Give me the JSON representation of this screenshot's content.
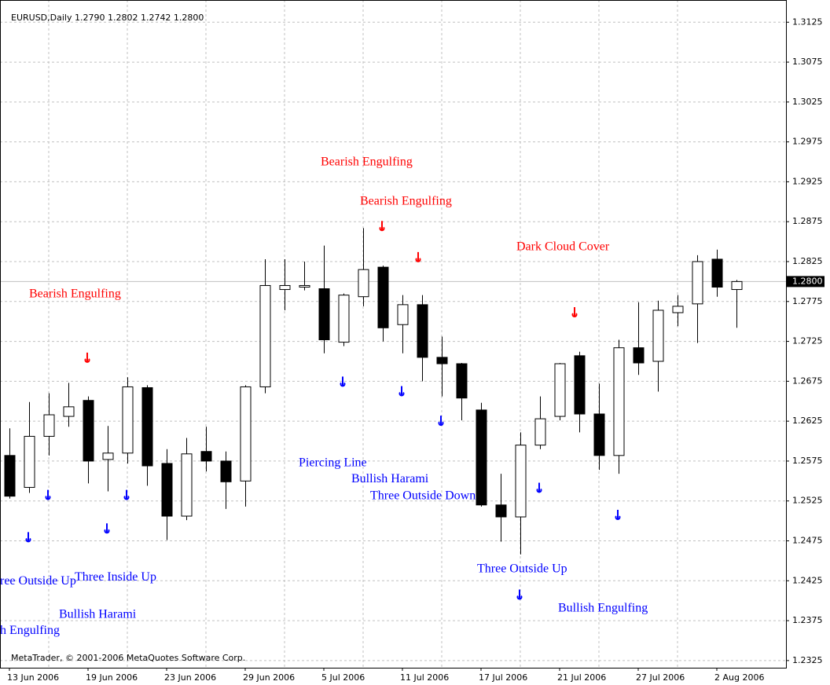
{
  "chart_data": {
    "type": "candlestick",
    "title": "EURUSD,Daily  1.2790 1.2802 1.2742 1.2800",
    "footer": "MetaTrader, © 2001-2006 MetaQuotes Software Corp.",
    "categories": [
      "13 Jun 2006",
      null,
      null,
      null,
      "19 Jun 2006",
      null,
      null,
      null,
      "23 Jun 2006",
      null,
      null,
      null,
      "29 Jun 2006",
      null,
      null,
      null,
      "5 Jul 2006",
      null,
      null,
      null,
      "11 Jul 2006",
      null,
      null,
      null,
      "17 Jul 2006",
      null,
      null,
      null,
      "21 Jul 2006",
      null,
      null,
      null,
      "27 Jul 2006",
      null,
      null,
      null,
      "2 Aug 2006",
      null
    ],
    "series": [
      {
        "name": "EURUSD",
        "open": [
          1.2582,
          1.2542,
          1.2606,
          1.2631,
          1.2651,
          1.2577,
          1.2585,
          1.2667,
          1.2572,
          1.2506,
          1.2587,
          1.2575,
          1.255,
          1.2668,
          1.279,
          1.2793,
          1.2791,
          1.2724,
          1.2781,
          1.2818,
          1.2746,
          1.2771,
          1.2705,
          1.2697,
          1.2639,
          1.252,
          1.2505,
          1.2595,
          1.2631,
          1.2707,
          1.2634,
          1.2582,
          1.2717,
          1.27,
          1.2761,
          1.2772,
          1.2828,
          1.279
        ],
        "high": [
          1.2616,
          1.2649,
          1.266,
          1.2673,
          1.2656,
          1.2619,
          1.268,
          1.267,
          1.259,
          1.2604,
          1.2618,
          1.2587,
          1.267,
          1.2828,
          1.2828,
          1.2825,
          1.2845,
          1.2785,
          1.2867,
          1.282,
          1.2783,
          1.2783,
          1.2731,
          1.2698,
          1.2648,
          1.2559,
          1.2611,
          1.2656,
          1.2698,
          1.2712,
          1.2672,
          1.2727,
          1.2774,
          1.2776,
          1.2783,
          1.2833,
          1.284,
          1.2802
        ],
        "low": [
          1.2528,
          1.2535,
          1.2582,
          1.2618,
          1.2547,
          1.2537,
          1.2572,
          1.2544,
          1.2476,
          1.2501,
          1.2562,
          1.2515,
          1.2518,
          1.266,
          1.2764,
          1.2789,
          1.271,
          1.2719,
          1.2769,
          1.2725,
          1.271,
          1.2675,
          1.2656,
          1.2626,
          1.2518,
          1.2474,
          1.2458,
          1.259,
          1.2626,
          1.2611,
          1.2564,
          1.2559,
          1.2683,
          1.2662,
          1.2744,
          1.2723,
          1.2781,
          1.2742
        ],
        "close": [
          1.2531,
          1.2606,
          1.2633,
          1.2643,
          1.2575,
          1.2585,
          1.2668,
          1.2569,
          1.2506,
          1.2584,
          1.2575,
          1.2549,
          1.2668,
          1.2795,
          1.2795,
          1.2795,
          1.2727,
          1.2783,
          1.2815,
          1.2742,
          1.2771,
          1.2705,
          1.2697,
          1.2654,
          1.252,
          1.2505,
          1.2595,
          1.2628,
          1.2697,
          1.2634,
          1.2582,
          1.2717,
          1.2698,
          1.2764,
          1.2769,
          1.2825,
          1.2793,
          1.28
        ]
      }
    ],
    "ylim": [
      1.2316,
      1.3143
    ],
    "yticks": [
      1.3125,
      1.3075,
      1.3025,
      1.2975,
      1.2925,
      1.2875,
      1.2825,
      1.2775,
      1.2725,
      1.2675,
      1.2625,
      1.2575,
      1.2525,
      1.2475,
      1.2425,
      1.2375,
      1.2325
    ],
    "current_price": {
      "value": 1.28,
      "label": "1.2800"
    },
    "grid": true,
    "annotations": [
      {
        "text": "Bearish Engulfing",
        "bar": 1.0,
        "price": 1.2784,
        "color": "#ff0000"
      },
      {
        "text": "Bearish Engulfing",
        "bar": 15.84,
        "price": 1.2949,
        "color": "#ff0000"
      },
      {
        "text": "Bearish Engulfing",
        "bar": 17.84,
        "price": 1.29,
        "color": "#ff0000"
      },
      {
        "text": "Dark Cloud Cover",
        "bar": 25.8,
        "price": 1.2843,
        "color": "#ff0000"
      },
      {
        "text": "Piercing Line",
        "bar": 14.72,
        "price": 1.2572,
        "color": "#0000ff"
      },
      {
        "text": "Bullish Harami",
        "bar": 17.4,
        "price": 1.2552,
        "color": "#0000ff"
      },
      {
        "text": "Three Outside Down",
        "bar": 18.36,
        "price": 1.2531,
        "color": "#0000ff"
      },
      {
        "text": "Three Outside Up",
        "bar": 23.8,
        "price": 1.2439,
        "color": "#0000ff"
      },
      {
        "text": "Bullish Engulfing",
        "bar": 27.92,
        "price": 1.239,
        "color": "#0000ff"
      },
      {
        "text": "ree Outside Up",
        "bar": -0.48,
        "price": 1.2424,
        "color": "#0000ff"
      },
      {
        "text": "Three Inside Up",
        "bar": 3.32,
        "price": 1.2429,
        "color": "#0000ff"
      },
      {
        "text": "Bullish Harami",
        "bar": 2.52,
        "price": 1.2382,
        "color": "#0000ff"
      },
      {
        "text": "h Engulfing",
        "bar": -0.48,
        "price": 1.2362,
        "color": "#0000ff"
      }
    ],
    "signals": [
      {
        "bar": 4,
        "price": 1.2705,
        "color": "#ff0000"
      },
      {
        "bar": 19,
        "price": 1.287,
        "color": "#ff0000"
      },
      {
        "bar": 20.84,
        "price": 1.2831,
        "color": "#ff0000"
      },
      {
        "bar": 28.8,
        "price": 1.2762,
        "color": "#ff0000"
      },
      {
        "bar": 1,
        "price": 1.248,
        "color": "#0000ff"
      },
      {
        "bar": 2,
        "price": 1.2533,
        "color": "#0000ff"
      },
      {
        "bar": 5,
        "price": 1.2491,
        "color": "#0000ff"
      },
      {
        "bar": 6,
        "price": 1.2533,
        "color": "#0000ff"
      },
      {
        "bar": 17,
        "price": 1.2675,
        "color": "#0000ff"
      },
      {
        "bar": 20,
        "price": 1.2663,
        "color": "#0000ff"
      },
      {
        "bar": 22,
        "price": 1.2626,
        "color": "#0000ff"
      },
      {
        "bar": 27,
        "price": 1.2542,
        "color": "#0000ff"
      },
      {
        "bar": 26,
        "price": 1.2408,
        "color": "#0000ff"
      },
      {
        "bar": 31,
        "price": 1.2508,
        "color": "#0000ff"
      }
    ]
  }
}
